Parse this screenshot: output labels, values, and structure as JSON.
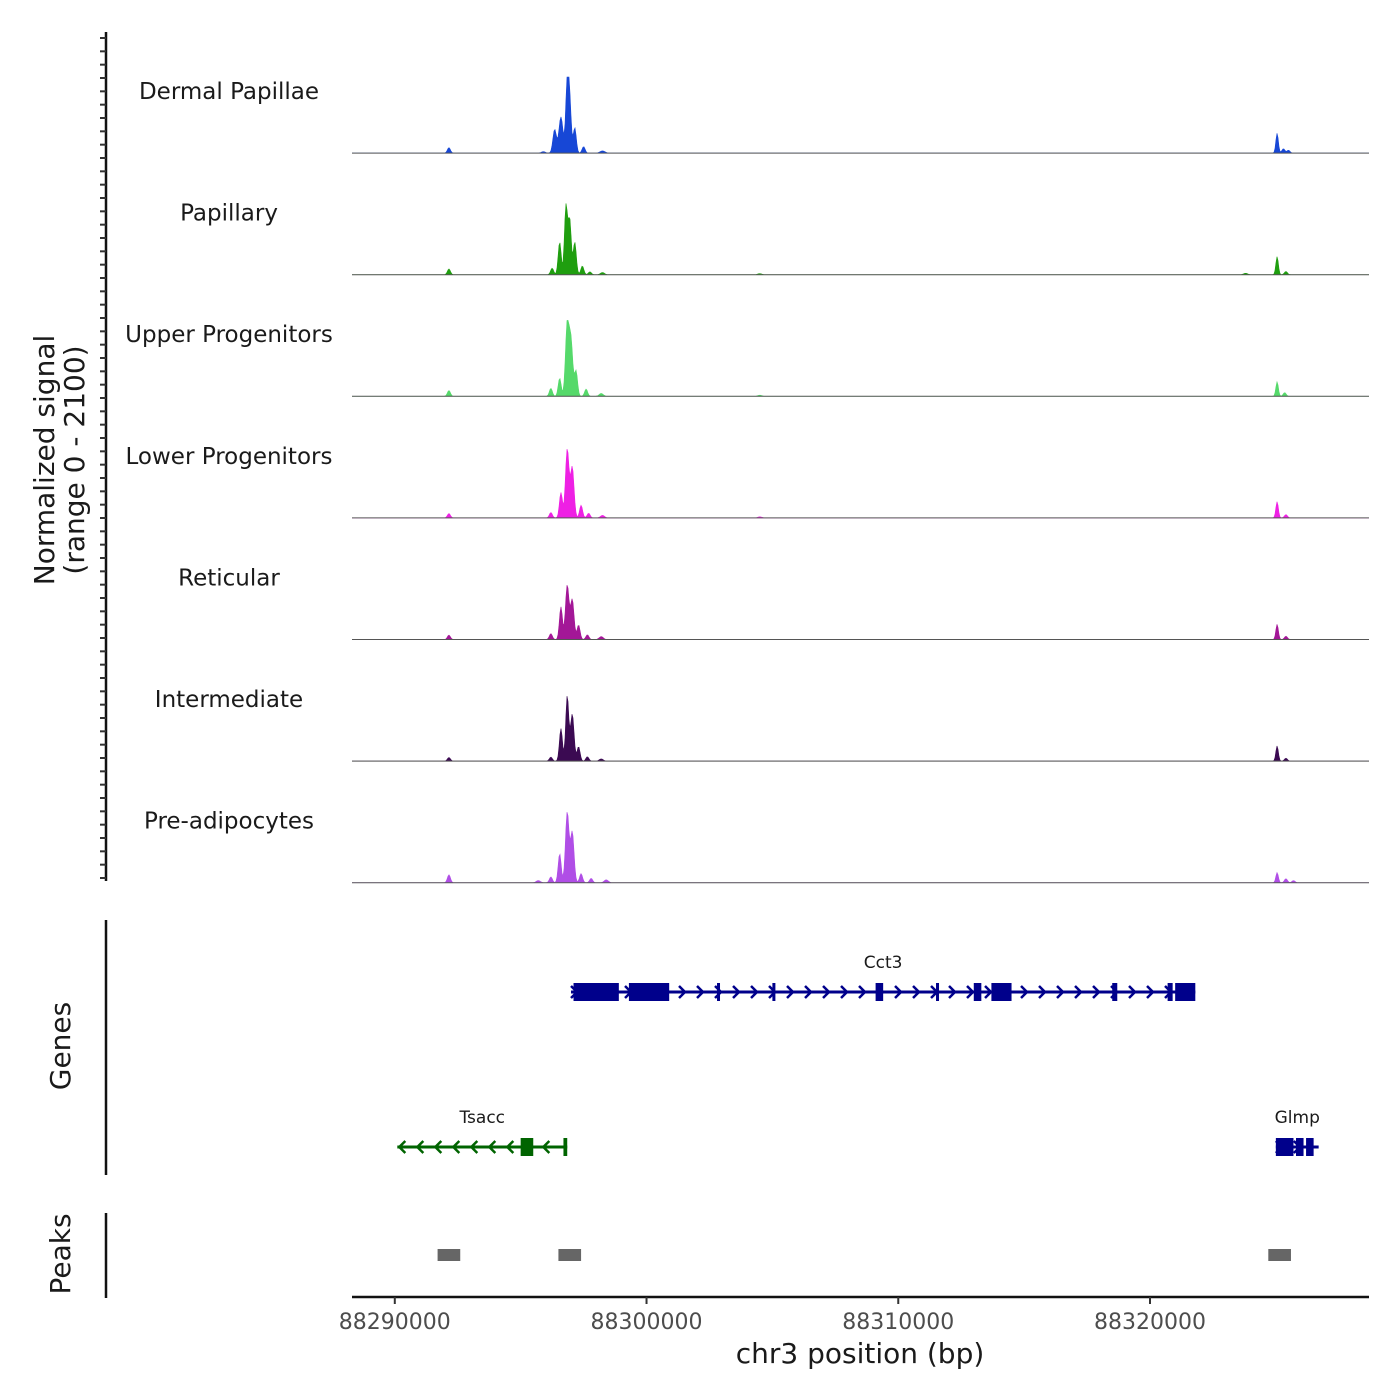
{
  "chart_data": {
    "type": "area",
    "title": "",
    "chromosome": "chr3",
    "xlabel": "chr3 position (bp)",
    "xlim": [
      88288300,
      88328700
    ],
    "x_ticks": [
      88290000,
      88300000,
      88310000,
      88320000
    ],
    "x_tick_labels": [
      "88290000",
      "88300000",
      "88310000",
      "88320000"
    ],
    "coverage_ylabel_line1": "Normalized signal",
    "coverage_ylabel_line2": "(range 0 - 2100)",
    "ylim": [
      0,
      2100
    ],
    "series": [
      {
        "name": "Dermal Papillae",
        "color": "#1747d6",
        "peaks": [
          [
            88292150,
            150,
            60
          ],
          [
            88295900,
            40,
            80
          ],
          [
            88296350,
            650,
            70
          ],
          [
            88296600,
            1000,
            80
          ],
          [
            88296850,
            1950,
            60
          ],
          [
            88296950,
            1300,
            60
          ],
          [
            88297150,
            700,
            60
          ],
          [
            88297500,
            180,
            60
          ],
          [
            88298250,
            60,
            100
          ],
          [
            88325050,
            550,
            50
          ],
          [
            88325300,
            120,
            60
          ],
          [
            88325500,
            80,
            60
          ]
        ]
      },
      {
        "name": "Papillary",
        "color": "#1f9e0f",
        "peaks": [
          [
            88292150,
            160,
            60
          ],
          [
            88296250,
            180,
            60
          ],
          [
            88296550,
            900,
            60
          ],
          [
            88296800,
            1900,
            60
          ],
          [
            88296950,
            1500,
            60
          ],
          [
            88297150,
            900,
            60
          ],
          [
            88297450,
            240,
            60
          ],
          [
            88297750,
            80,
            60
          ],
          [
            88298250,
            60,
            80
          ],
          [
            88304500,
            30,
            80
          ],
          [
            88323800,
            40,
            80
          ],
          [
            88325050,
            500,
            50
          ],
          [
            88325400,
            90,
            60
          ]
        ]
      },
      {
        "name": "Upper Progenitors",
        "color": "#55d96a",
        "peaks": [
          [
            88292150,
            160,
            60
          ],
          [
            88296200,
            220,
            60
          ],
          [
            88296550,
            500,
            60
          ],
          [
            88296850,
            2000,
            70
          ],
          [
            88297000,
            1500,
            70
          ],
          [
            88297200,
            700,
            60
          ],
          [
            88297600,
            200,
            60
          ],
          [
            88298200,
            80,
            80
          ],
          [
            88304500,
            30,
            80
          ],
          [
            88325050,
            400,
            50
          ],
          [
            88325350,
            100,
            60
          ]
        ]
      },
      {
        "name": "Lower Progenitors",
        "color": "#ee20e4",
        "peaks": [
          [
            88292150,
            120,
            60
          ],
          [
            88296200,
            150,
            60
          ],
          [
            88296600,
            700,
            60
          ],
          [
            88296850,
            1900,
            70
          ],
          [
            88297050,
            1400,
            70
          ],
          [
            88297400,
            350,
            60
          ],
          [
            88297700,
            130,
            60
          ],
          [
            88298250,
            70,
            80
          ],
          [
            88304500,
            30,
            80
          ],
          [
            88325050,
            450,
            50
          ],
          [
            88325400,
            90,
            60
          ]
        ]
      },
      {
        "name": "Reticular",
        "color": "#a31797",
        "peaks": [
          [
            88292150,
            120,
            60
          ],
          [
            88296200,
            160,
            60
          ],
          [
            88296600,
            900,
            60
          ],
          [
            88296850,
            1500,
            70
          ],
          [
            88297050,
            1100,
            70
          ],
          [
            88297300,
            400,
            60
          ],
          [
            88297650,
            130,
            60
          ],
          [
            88298200,
            80,
            80
          ],
          [
            88325050,
            420,
            50
          ],
          [
            88325400,
            90,
            60
          ]
        ]
      },
      {
        "name": "Intermediate",
        "color": "#3b0a52",
        "peaks": [
          [
            88292150,
            100,
            60
          ],
          [
            88296200,
            110,
            60
          ],
          [
            88296600,
            900,
            60
          ],
          [
            88296850,
            1800,
            60
          ],
          [
            88297050,
            1300,
            70
          ],
          [
            88297300,
            400,
            60
          ],
          [
            88297650,
            120,
            60
          ],
          [
            88298200,
            60,
            80
          ],
          [
            88325050,
            420,
            50
          ],
          [
            88325400,
            80,
            60
          ]
        ]
      },
      {
        "name": "Pre-adipocytes",
        "color": "#b04ee6",
        "peaks": [
          [
            88292150,
            220,
            60
          ],
          [
            88296200,
            160,
            60
          ],
          [
            88296550,
            800,
            60
          ],
          [
            88296850,
            1950,
            70
          ],
          [
            88297050,
            1400,
            70
          ],
          [
            88297400,
            250,
            60
          ],
          [
            88297800,
            120,
            60
          ],
          [
            88298400,
            80,
            80
          ],
          [
            88295700,
            60,
            80
          ],
          [
            88325050,
            280,
            50
          ],
          [
            88325400,
            110,
            60
          ],
          [
            88325700,
            60,
            60
          ]
        ]
      }
    ],
    "genes_ylabel": "Genes",
    "genes": [
      {
        "name": "Cct3",
        "strand": "+",
        "color": "#00008b",
        "row": 0,
        "start": 88297000,
        "end": 88321800,
        "exons": [
          [
            88297100,
            88298900
          ],
          [
            88299300,
            88300900
          ],
          [
            88302800,
            88302900
          ],
          [
            88305000,
            88305100
          ],
          [
            88309100,
            88309400
          ],
          [
            88311500,
            88311600
          ],
          [
            88313000,
            88313300
          ],
          [
            88313700,
            88314500
          ],
          [
            88318500,
            88318700
          ],
          [
            88320700,
            88320900
          ],
          [
            88321000,
            88321800
          ]
        ]
      },
      {
        "name": "Tsacc",
        "strand": "-",
        "color": "#006400",
        "row": 1,
        "start": 88290100,
        "end": 88296850,
        "exons": [
          [
            88295000,
            88295500
          ],
          [
            88296700,
            88296850
          ]
        ]
      },
      {
        "name": "Glmp",
        "strand": "+",
        "color": "#00008b",
        "row": 1,
        "start": 88325000,
        "end": 88326700,
        "exons": [
          [
            88325000,
            88325700
          ],
          [
            88325800,
            88326100
          ],
          [
            88326200,
            88326500
          ]
        ]
      }
    ],
    "peaks_ylabel": "Peaks",
    "peak_regions": [
      [
        88291700,
        88292600
      ],
      [
        88296500,
        88297400
      ],
      [
        88324700,
        88325600
      ]
    ],
    "peak_color": "#666666"
  }
}
